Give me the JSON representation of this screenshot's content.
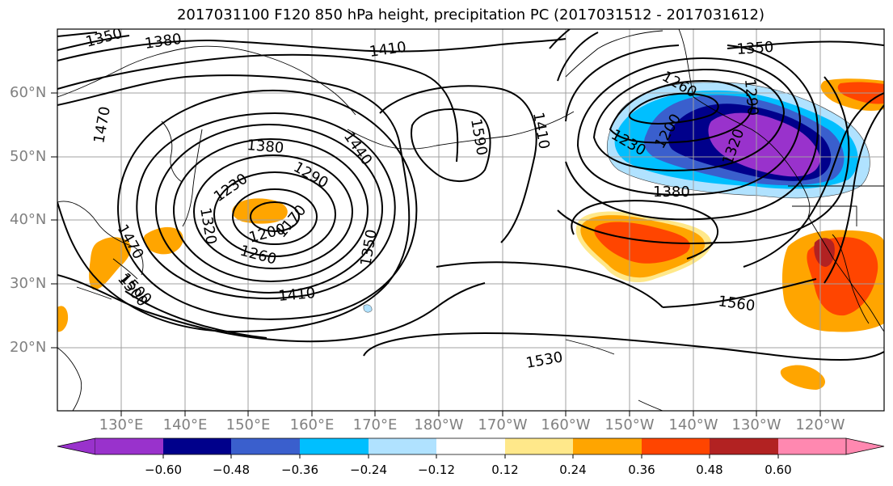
{
  "title": "2017031100 F120 850 hPa height, precipitation PC (2017031512 - 2017031612)",
  "lat_labels": [
    "60°N",
    "50°N",
    "40°N",
    "30°N",
    "20°N"
  ],
  "lon_labels": [
    "130°E",
    "140°E",
    "150°E",
    "160°E",
    "170°E",
    "180°W",
    "170°W",
    "160°W",
    "150°W",
    "140°W",
    "130°W",
    "120°W"
  ],
  "contour_labels": [
    "1350",
    "1380",
    "1410",
    "1470",
    "1440",
    "1500",
    "1590",
    "1410",
    "1260",
    "1290",
    "1230",
    "1200",
    "1320",
    "1350",
    "1380",
    "1290",
    "1230",
    "1320",
    "1170",
    "1200",
    "1260",
    "1350",
    "1410",
    "1530",
    "1560",
    "1470",
    "1500",
    "1380"
  ],
  "colorbar": {
    "ticks": [
      "−0.60",
      "−0.48",
      "−0.36",
      "−0.24",
      "−0.12",
      "0.12",
      "0.24",
      "0.36",
      "0.48",
      "0.60"
    ],
    "colors": [
      "#9932cc",
      "#00008b",
      "#3a5fcd",
      "#00bfff",
      "#b0e2ff",
      "#ffffff",
      "#ffe88a",
      "#ffa500",
      "#ff4500",
      "#b22222",
      "#ff88b0"
    ]
  }
}
